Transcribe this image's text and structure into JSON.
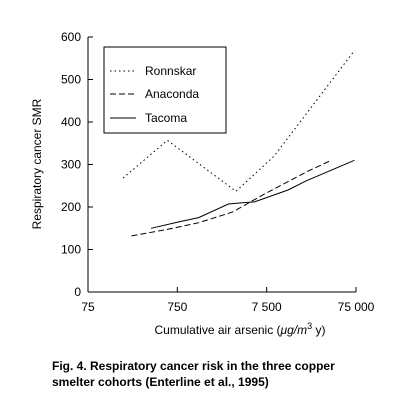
{
  "chart_data": {
    "type": "line",
    "ylabel": "Respiratory cancer SMR",
    "xlabel_main": "Cumulative air arsenic (",
    "xlabel_unit": "μg/m",
    "xlabel_sup": "3",
    "xlabel_tail": " y)",
    "x_scale": "log",
    "xlim": [
      75,
      75000
    ],
    "ylim": [
      0,
      600
    ],
    "x_ticks": [
      75,
      750,
      7500,
      75000
    ],
    "x_tick_labels": [
      "75",
      "750",
      "7 500",
      "75 000"
    ],
    "y_ticks": [
      0,
      100,
      200,
      300,
      400,
      500,
      600
    ],
    "y_tick_labels": [
      "0",
      "100",
      "200",
      "300",
      "400",
      "500",
      "600"
    ],
    "grid": false,
    "legend_position": "top-left",
    "series": [
      {
        "name": "Ronnskar",
        "dash": "1.5,3",
        "points": [
          [
            185,
            268
          ],
          [
            580,
            357
          ],
          [
            3400,
            237
          ],
          [
            9100,
            320
          ],
          [
            72000,
            568
          ]
        ]
      },
      {
        "name": "Anaconda",
        "dash": "6,3",
        "points": [
          [
            230,
            132
          ],
          [
            570,
            147
          ],
          [
            1300,
            163
          ],
          [
            3100,
            188
          ],
          [
            7000,
            230
          ],
          [
            22000,
            285
          ],
          [
            38000,
            308
          ]
        ]
      },
      {
        "name": "Tacoma",
        "dash": "",
        "points": [
          [
            380,
            150
          ],
          [
            780,
            165
          ],
          [
            1300,
            175
          ],
          [
            2800,
            207
          ],
          [
            4000,
            210
          ],
          [
            5500,
            212
          ],
          [
            13000,
            240
          ],
          [
            21000,
            262
          ],
          [
            72000,
            310
          ]
        ]
      }
    ]
  },
  "caption": {
    "line1": "Fig. 4.  Respiratory cancer risk in the three copper",
    "line2": "smelter cohorts (Enterline et al., 1995)"
  }
}
